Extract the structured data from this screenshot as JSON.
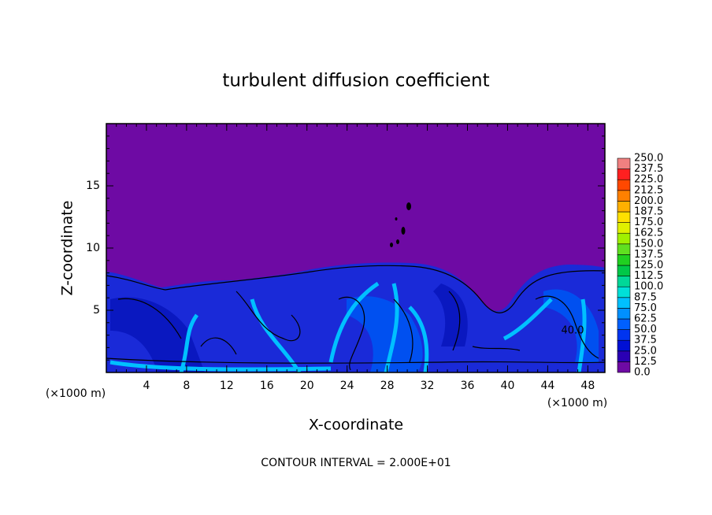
{
  "chart_data": {
    "type": "contour",
    "title": "turbulent diffusion coefficient",
    "xlabel": "X-coordinate",
    "ylabel": "Z-coordinate",
    "x_unit_labels": [
      "(×1000 m)",
      "(×1000 m)"
    ],
    "footnote": "CONTOUR INTERVAL = 2.000E+01",
    "contour_label": "40.0",
    "background_color": "#6e0aa4",
    "xlim": [
      0,
      49.7
    ],
    "ylim": [
      0,
      20
    ],
    "xticks": [
      4,
      8,
      12,
      16,
      20,
      24,
      28,
      32,
      36,
      40,
      44,
      48
    ],
    "yticks": [
      5,
      10,
      15
    ],
    "colorbar": {
      "levels": [
        {
          "value": 0,
          "label": "0.0"
        },
        {
          "value": 12.5,
          "label": "12.5"
        },
        {
          "value": 25,
          "label": "25.0"
        },
        {
          "value": 37.5,
          "label": "37.5"
        },
        {
          "value": 50,
          "label": "50.0"
        },
        {
          "value": 62.5,
          "label": "62.5"
        },
        {
          "value": 75,
          "label": "75.0"
        },
        {
          "value": 87.5,
          "label": "87.5"
        },
        {
          "value": 100,
          "label": "100.0"
        },
        {
          "value": 112.5,
          "label": "112.5"
        },
        {
          "value": 125,
          "label": "125.0"
        },
        {
          "value": 137.5,
          "label": "137.5"
        },
        {
          "value": 150,
          "label": "150.0"
        },
        {
          "value": 162.5,
          "label": "162.5"
        },
        {
          "value": 175,
          "label": "175.0"
        },
        {
          "value": 187.5,
          "label": "187.5"
        },
        {
          "value": 200,
          "label": "200.0"
        },
        {
          "value": 212.5,
          "label": "212.5"
        },
        {
          "value": 225,
          "label": "225.0"
        },
        {
          "value": 237.5,
          "label": "237.5"
        },
        {
          "value": 250,
          "label": "250.0"
        }
      ],
      "colors": [
        "#6e0aa4",
        "#2a00b4",
        "#0010d4",
        "#0034f0",
        "#0060ff",
        "#0090ff",
        "#00c0ff",
        "#00e0d8",
        "#00d898",
        "#00c848",
        "#20d020",
        "#60e020",
        "#a0f000",
        "#e0f000",
        "#ffe000",
        "#ffb000",
        "#ff8000",
        "#ff4800",
        "#ff2020",
        "#f08080"
      ]
    }
  }
}
